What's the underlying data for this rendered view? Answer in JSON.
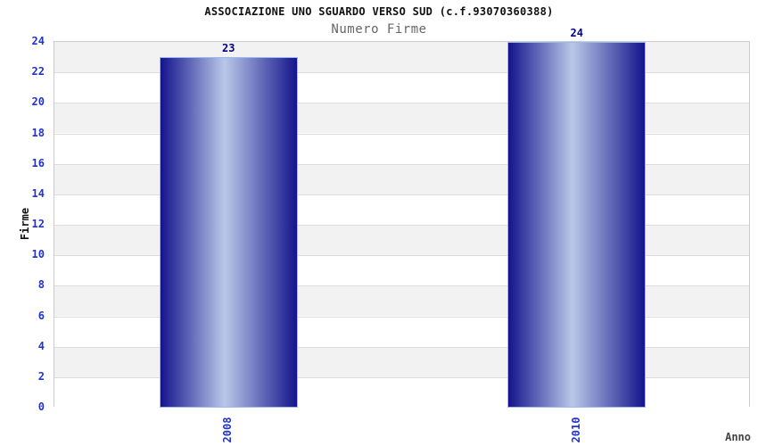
{
  "chart_data": {
    "type": "bar",
    "title": "ASSOCIAZIONE UNO SGUARDO VERSO SUD (c.f.93070360388)",
    "subtitle": "Numero Firme",
    "categories": [
      "2008",
      "2010"
    ],
    "values": [
      23,
      24
    ],
    "xlabel": "Anno",
    "ylabel": "Firme",
    "ylim": [
      0,
      24
    ],
    "ytick_step": 2,
    "grid": "horizontal-bands-alternating",
    "legend": "none"
  },
  "colors": {
    "title_text": "#111111",
    "subtitle_text": "#666666",
    "band_gray": "#f2f2f2",
    "band_white": "#ffffff",
    "grid_line": "#dcdcdc",
    "plot_border": "#cccccc",
    "tick_label": "#2233cc",
    "bar_dark": "#14148c",
    "bar_highlight": "#b9c8e8",
    "bar_border": "#9cb8f0",
    "value_label": "#000090",
    "axis_title_y": "#111111",
    "axis_title_x": "#444444"
  }
}
